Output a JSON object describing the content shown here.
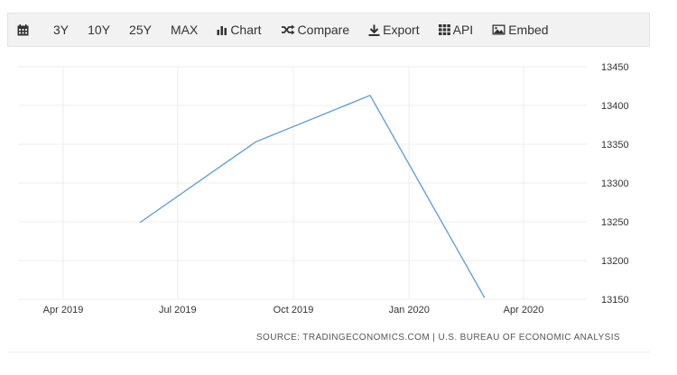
{
  "toolbar": {
    "calendar_icon": "calendar-icon",
    "ranges": [
      "3Y",
      "10Y",
      "25Y",
      "MAX"
    ],
    "chart_label": "Chart",
    "compare_label": "Compare",
    "export_label": "Export",
    "api_label": "API",
    "embed_label": "Embed"
  },
  "source": "SOURCE: TRADINGECONOMICS.COM | U.S. BUREAU OF ECONOMIC ANALYSIS",
  "colors": {
    "line": "#5b9bd5",
    "grid": "#ececec",
    "toolbar_bg": "#f2f2f2"
  },
  "chart_data": {
    "type": "line",
    "x": [
      "2019-06-01",
      "2019-09-01",
      "2019-12-01",
      "2020-03-01"
    ],
    "x_tick_labels": [
      "Apr 2019",
      "Jul 2019",
      "Oct 2019",
      "Jan 2020",
      "Apr 2020"
    ],
    "x_ticks": [
      "2019-04-01",
      "2019-07-01",
      "2019-10-01",
      "2020-01-01",
      "2020-04-01"
    ],
    "values": [
      13249,
      13353,
      13413,
      13152
    ],
    "y_ticks": [
      13150,
      13200,
      13250,
      13300,
      13350,
      13400,
      13450
    ],
    "ylim": [
      13150,
      13450
    ],
    "y_axis_side": "right",
    "grid": true,
    "legend": false
  }
}
